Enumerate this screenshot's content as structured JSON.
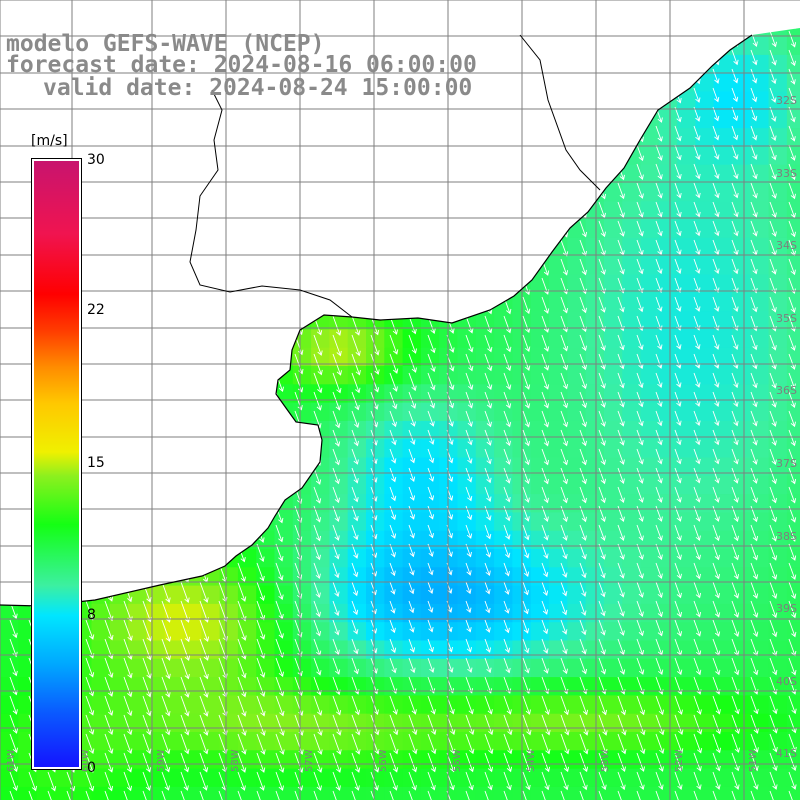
{
  "title": {
    "line1": "modelo GEFS-WAVE (NCEP)",
    "line2": "forecast date: 2024-08-16 06:00:00",
    "line3": "valid date: 2024-08-24 15:00:00"
  },
  "colorbar": {
    "unit": "[m/s]",
    "min": 0,
    "max": 30,
    "ticks": [
      "30",
      "22",
      "15",
      "8",
      "0"
    ]
  },
  "grid": {
    "lat_labels": [
      "32S",
      "33S",
      "34S",
      "35S",
      "36S",
      "37S",
      "38S",
      "39S",
      "40S",
      "41S"
    ],
    "lon_labels": [
      "61W",
      "60W",
      "59W",
      "58W",
      "57W",
      "56W",
      "55W",
      "54W",
      "53W",
      "52W",
      "51W"
    ]
  },
  "colors": {
    "land": "#ffffff",
    "coastline": "#000000",
    "grid_line": "#7f7f7f",
    "title": "#8a8a8a",
    "arrow": "#ffffff"
  },
  "wind_direction": "from north-northwest, arrows pointing south-southeast"
}
